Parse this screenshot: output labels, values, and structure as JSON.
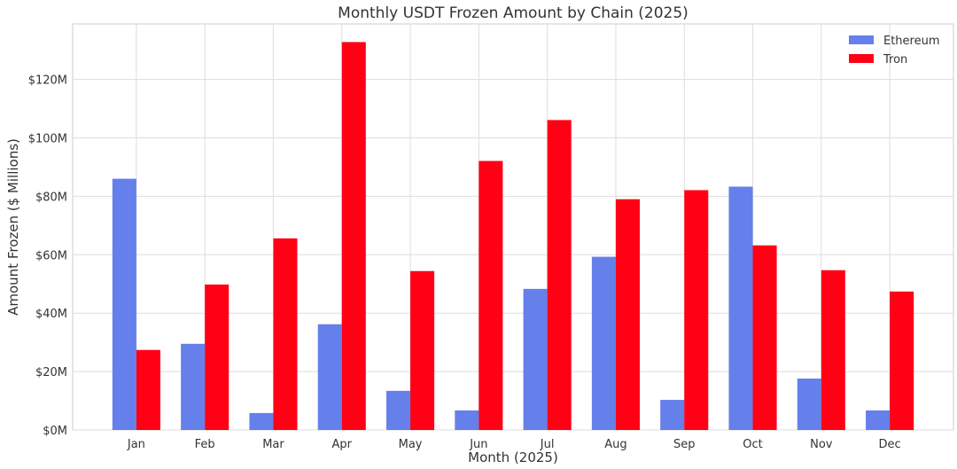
{
  "chart_data": {
    "type": "bar",
    "title": "Monthly USDT Frozen Amount by Chain (2025)",
    "xlabel": "Month (2025)",
    "ylabel": "Amount Frozen ($ Millions)",
    "categories": [
      "Jan",
      "Feb",
      "Mar",
      "Apr",
      "May",
      "Jun",
      "Jul",
      "Aug",
      "Sep",
      "Oct",
      "Nov",
      "Dec"
    ],
    "series": [
      {
        "name": "Ethereum",
        "color": "#6580ea",
        "values": [
          86.0,
          29.5,
          5.8,
          36.2,
          13.4,
          6.7,
          48.3,
          59.3,
          10.3,
          83.3,
          17.6,
          6.7
        ]
      },
      {
        "name": "Tron",
        "color": "#ff0015",
        "values": [
          27.4,
          49.8,
          65.6,
          132.8,
          54.4,
          92.1,
          106.1,
          79.0,
          82.1,
          63.2,
          54.7,
          47.4
        ]
      }
    ],
    "ylim": [
      0,
      139
    ],
    "yticks": [
      0,
      20,
      40,
      60,
      80,
      100,
      120
    ],
    "ytick_labels": [
      "$0M",
      "$20M",
      "$40M",
      "$60M",
      "$80M",
      "$100M",
      "$120M"
    ],
    "grid": true,
    "legend": "top-right"
  }
}
